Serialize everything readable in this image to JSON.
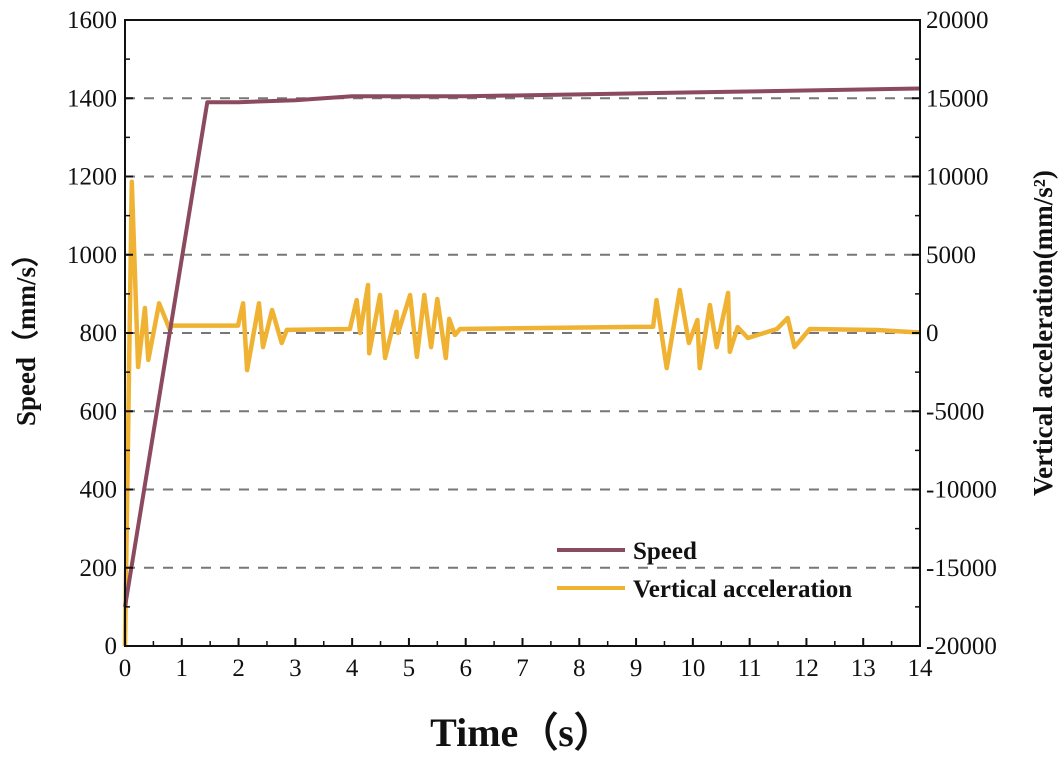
{
  "chart_data": {
    "type": "line",
    "title": "",
    "xlabel": "Time（s）",
    "ylabel_left": "Speed（mm/s）",
    "ylabel_right": "Vertical acceleration(mm/s²)",
    "xlim": [
      0,
      14
    ],
    "ylim_left": [
      0,
      1600
    ],
    "ylim_right": [
      -20000,
      20000
    ],
    "x_ticks": [
      "0",
      "1",
      "2",
      "3",
      "4",
      "5",
      "6",
      "7",
      "8",
      "9",
      "10",
      "11",
      "12",
      "13",
      "14"
    ],
    "y_left_ticks": [
      "0",
      "200",
      "400",
      "600",
      "800",
      "1000",
      "1200",
      "1400",
      "1600"
    ],
    "y_right_ticks": [
      "-20000",
      "-15000",
      "-10000",
      "-5000",
      "0",
      "5000",
      "10000",
      "15000",
      "20000"
    ],
    "grid": "horizontal dashed",
    "legend_position": "bottom-right",
    "series": [
      {
        "name": "Speed",
        "axis": "left",
        "color": "#8b4a5e",
        "points": [
          [
            0,
            100
          ],
          [
            1.45,
            1390
          ],
          [
            2,
            1390
          ],
          [
            3,
            1395
          ],
          [
            4,
            1405
          ],
          [
            6,
            1405
          ],
          [
            10,
            1415
          ],
          [
            14,
            1425
          ]
        ]
      },
      {
        "name": "Vertical acceleration",
        "axis": "right",
        "color": "#f0b232",
        "points": [
          [
            0,
            -20000
          ],
          [
            0.12,
            9670
          ],
          [
            0.23,
            -2170
          ],
          [
            0.35,
            1600
          ],
          [
            0.41,
            -1720
          ],
          [
            0.6,
            1900
          ],
          [
            0.79,
            200
          ],
          [
            0.82,
            470
          ],
          [
            1.99,
            470
          ],
          [
            2.08,
            1900
          ],
          [
            2.15,
            -2370
          ],
          [
            2.36,
            1900
          ],
          [
            2.43,
            -900
          ],
          [
            2.59,
            1470
          ],
          [
            2.76,
            -640
          ],
          [
            2.85,
            200
          ],
          [
            3.96,
            255
          ],
          [
            4.08,
            2100
          ],
          [
            4.14,
            0
          ],
          [
            4.28,
            3070
          ],
          [
            4.3,
            -1300
          ],
          [
            4.49,
            2430
          ],
          [
            4.58,
            -1600
          ],
          [
            4.78,
            1360
          ],
          [
            4.81,
            0
          ],
          [
            5.02,
            2430
          ],
          [
            5.14,
            -1530
          ],
          [
            5.27,
            2430
          ],
          [
            5.39,
            -900
          ],
          [
            5.5,
            2170
          ],
          [
            5.65,
            -1600
          ],
          [
            5.71,
            900
          ],
          [
            5.81,
            -130
          ],
          [
            5.9,
            255
          ],
          [
            9.3,
            400
          ],
          [
            9.36,
            2100
          ],
          [
            9.54,
            -2240
          ],
          [
            9.77,
            2750
          ],
          [
            9.93,
            -640
          ],
          [
            10.08,
            830
          ],
          [
            10.12,
            -2240
          ],
          [
            10.3,
            1790
          ],
          [
            10.42,
            -900
          ],
          [
            10.62,
            2560
          ],
          [
            10.65,
            -1200
          ],
          [
            10.79,
            380
          ],
          [
            10.97,
            -320
          ],
          [
            11.48,
            255
          ],
          [
            11.67,
            960
          ],
          [
            11.79,
            -900
          ],
          [
            12.06,
            255
          ],
          [
            13.24,
            190
          ],
          [
            13.87,
            60
          ],
          [
            14,
            50
          ]
        ]
      }
    ]
  }
}
